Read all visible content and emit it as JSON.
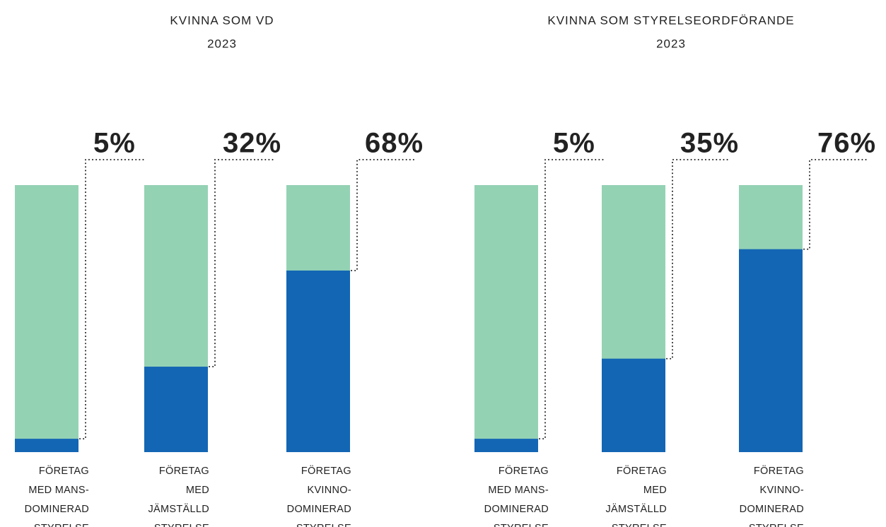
{
  "chart_data": [
    {
      "type": "bar",
      "title": "KVINNA SOM VD",
      "subtitle": "2023",
      "categories": [
        [
          "FÖRETAG",
          "MED MANS-",
          "DOMINERAD",
          "STYRELSE"
        ],
        [
          "FÖRETAG",
          "MED",
          "JÄMSTÄLLD",
          "STYRELSE"
        ],
        [
          "FÖRETAG",
          "KVINNO-",
          "DOMINERAD",
          "STYRELSE"
        ]
      ],
      "values": [
        5,
        32,
        68
      ],
      "value_labels": [
        "5%",
        "32%",
        "68%"
      ],
      "color": "#1366b4",
      "background_color": "#94d2b4",
      "ylim": [
        0,
        100
      ]
    },
    {
      "type": "bar",
      "title": "KVINNA SOM STYRELSEORDFÖRANDE",
      "subtitle": "2023",
      "categories": [
        [
          "FÖRETAG",
          "MED MANS-",
          "DOMINERAD",
          "STYRELSE"
        ],
        [
          "FÖRETAG",
          "MED",
          "JÄMSTÄLLD",
          "STYRELSE"
        ],
        [
          "FÖRETAG",
          "KVINNO-",
          "DOMINERAD",
          "STYRELSE"
        ]
      ],
      "values": [
        5,
        35,
        76
      ],
      "value_labels": [
        "5%",
        "35%",
        "76%"
      ],
      "color": "#1366b4",
      "background_color": "#94d2b4",
      "ylim": [
        0,
        100
      ]
    }
  ]
}
